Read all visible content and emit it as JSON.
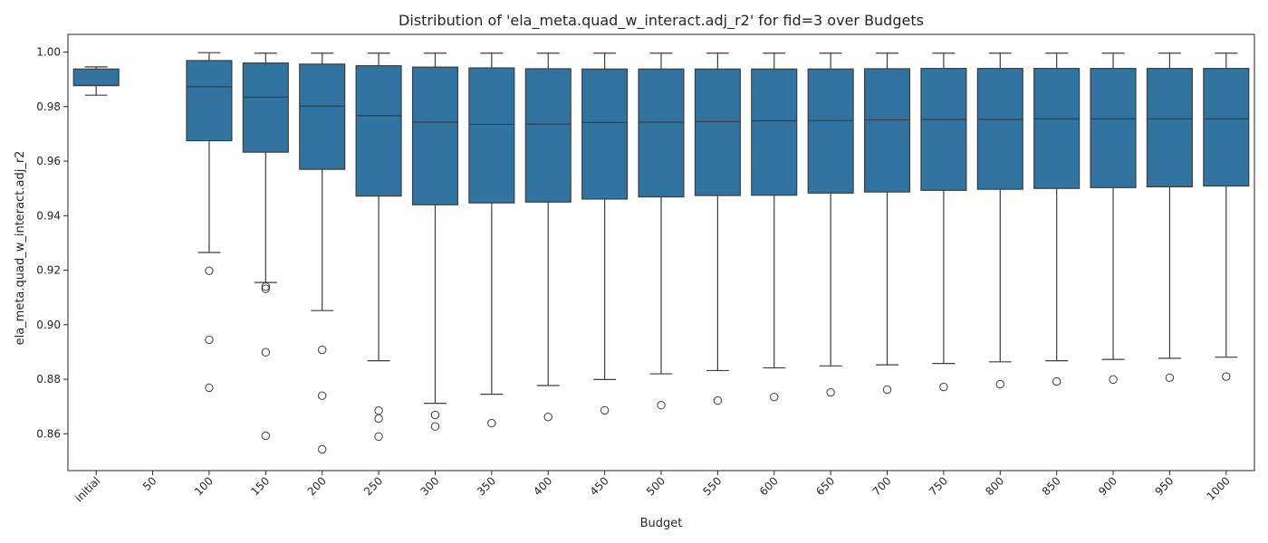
{
  "chart_data": {
    "type": "box",
    "title": "Distribution of 'ela_meta.quad_w_interact.adj_r2' for fid=3 over Budgets",
    "xlabel": "Budget",
    "ylabel": "ela_meta.quad_w_interact.adj_r2",
    "categories": [
      "initial",
      "50",
      "100",
      "150",
      "200",
      "250",
      "300",
      "350",
      "400",
      "450",
      "500",
      "550",
      "600",
      "650",
      "700",
      "750",
      "800",
      "850",
      "900",
      "950",
      "1000"
    ],
    "ylim": [
      0.8465,
      1.0065
    ],
    "yticks": [
      0.86,
      0.88,
      0.9,
      0.92,
      0.94,
      0.96,
      0.98,
      1.0
    ],
    "ytick_labels": [
      "0.86",
      "0.88",
      "0.90",
      "0.92",
      "0.94",
      "0.96",
      "0.98",
      "1.00"
    ],
    "box_color": "#3274a1",
    "line_color": "#3d3d3d",
    "boxes": [
      {
        "category": "initial",
        "whisker_low": 0.9842,
        "q1": 0.9877,
        "median": 0.9878,
        "q3": 0.9938,
        "whisker_high": 0.9946,
        "outliers": []
      },
      {
        "category": "50",
        "whisker_low": null,
        "q1": null,
        "median": null,
        "q3": null,
        "whisker_high": null,
        "outliers": []
      },
      {
        "category": "100",
        "whisker_low": 0.9265,
        "q1": 0.9675,
        "median": 0.9873,
        "q3": 0.9969,
        "whisker_high": 0.9998,
        "outliers": [
          0.9198,
          0.8945,
          0.8769
        ]
      },
      {
        "category": "150",
        "whisker_low": 0.9155,
        "q1": 0.9633,
        "median": 0.9835,
        "q3": 0.996,
        "whisker_high": 0.9996,
        "outliers": [
          0.914,
          0.9132,
          0.8899,
          0.8593
        ]
      },
      {
        "category": "200",
        "whisker_low": 0.9052,
        "q1": 0.957,
        "median": 0.9802,
        "q3": 0.9956,
        "whisker_high": 0.9996,
        "outliers": [
          0.8908,
          0.874,
          0.8543
        ]
      },
      {
        "category": "250",
        "whisker_low": 0.8868,
        "q1": 0.9472,
        "median": 0.9767,
        "q3": 0.995,
        "whisker_high": 0.9996,
        "outliers": [
          0.8685,
          0.8656,
          0.859
        ]
      },
      {
        "category": "300",
        "whisker_low": 0.8712,
        "q1": 0.944,
        "median": 0.9743,
        "q3": 0.9945,
        "whisker_high": 0.9996,
        "outliers": [
          0.8669,
          0.8627
        ]
      },
      {
        "category": "350",
        "whisker_low": 0.8745,
        "q1": 0.9447,
        "median": 0.9735,
        "q3": 0.9942,
        "whisker_high": 0.9996,
        "outliers": [
          0.8639
        ]
      },
      {
        "category": "400",
        "whisker_low": 0.8777,
        "q1": 0.945,
        "median": 0.9736,
        "q3": 0.9939,
        "whisker_high": 0.9996,
        "outliers": [
          0.8662
        ]
      },
      {
        "category": "450",
        "whisker_low": 0.8799,
        "q1": 0.9461,
        "median": 0.9742,
        "q3": 0.9938,
        "whisker_high": 0.9996,
        "outliers": [
          0.8686
        ]
      },
      {
        "category": "500",
        "whisker_low": 0.882,
        "q1": 0.9469,
        "median": 0.9743,
        "q3": 0.9938,
        "whisker_high": 0.9996,
        "outliers": [
          0.8705
        ]
      },
      {
        "category": "550",
        "whisker_low": 0.8832,
        "q1": 0.9474,
        "median": 0.9745,
        "q3": 0.9938,
        "whisker_high": 0.9996,
        "outliers": [
          0.8722
        ]
      },
      {
        "category": "600",
        "whisker_low": 0.8842,
        "q1": 0.9475,
        "median": 0.9748,
        "q3": 0.9938,
        "whisker_high": 0.9996,
        "outliers": [
          0.8735
        ]
      },
      {
        "category": "650",
        "whisker_low": 0.8849,
        "q1": 0.9483,
        "median": 0.9749,
        "q3": 0.9938,
        "whisker_high": 0.9996,
        "outliers": [
          0.8752
        ]
      },
      {
        "category": "700",
        "whisker_low": 0.8853,
        "q1": 0.9487,
        "median": 0.9752,
        "q3": 0.9939,
        "whisker_high": 0.9996,
        "outliers": [
          0.8762
        ]
      },
      {
        "category": "750",
        "whisker_low": 0.8858,
        "q1": 0.9493,
        "median": 0.9753,
        "q3": 0.994,
        "whisker_high": 0.9996,
        "outliers": [
          0.8772
        ]
      },
      {
        "category": "800",
        "whisker_low": 0.8864,
        "q1": 0.9497,
        "median": 0.9753,
        "q3": 0.994,
        "whisker_high": 0.9996,
        "outliers": [
          0.8782
        ]
      },
      {
        "category": "850",
        "whisker_low": 0.8868,
        "q1": 0.95,
        "median": 0.9755,
        "q3": 0.994,
        "whisker_high": 0.9996,
        "outliers": [
          0.8792
        ]
      },
      {
        "category": "900",
        "whisker_low": 0.8873,
        "q1": 0.9503,
        "median": 0.9755,
        "q3": 0.994,
        "whisker_high": 0.9996,
        "outliers": [
          0.8799
        ]
      },
      {
        "category": "950",
        "whisker_low": 0.8877,
        "q1": 0.9506,
        "median": 0.9755,
        "q3": 0.994,
        "whisker_high": 0.9996,
        "outliers": [
          0.8806
        ]
      },
      {
        "category": "1000",
        "whisker_low": 0.8881,
        "q1": 0.9509,
        "median": 0.9755,
        "q3": 0.994,
        "whisker_high": 0.9996,
        "outliers": [
          0.881
        ]
      }
    ]
  }
}
